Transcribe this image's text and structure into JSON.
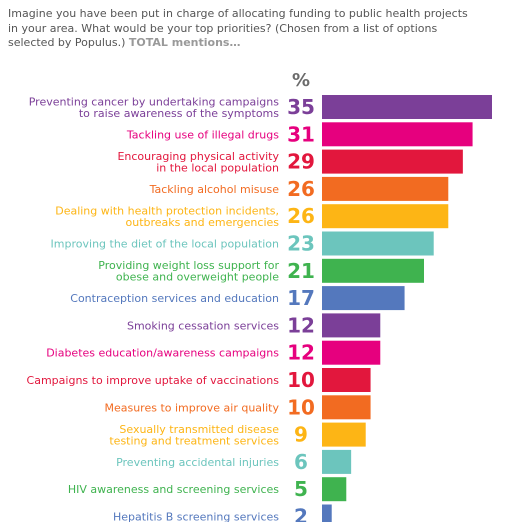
{
  "question": {
    "text": "Imagine you have been put in charge of allocating funding to public health projects in your area. What would be your top priorities? (Chosen from a list of options selected by Populus.)",
    "suffix": "TOTAL mentions…"
  },
  "value_unit_header": "%",
  "chart_data": {
    "type": "bar",
    "orientation": "horizontal",
    "title": "",
    "xlabel": "",
    "ylabel": "",
    "unit": "%",
    "xlim": [
      0,
      35
    ],
    "grid": false,
    "legend": "none",
    "categories": [
      [
        "Preventing cancer by undertaking campaigns",
        "to raise awareness of the symptoms"
      ],
      [
        "Tackling use of illegal drugs"
      ],
      [
        "Encouraging physical activity",
        "in the local population"
      ],
      [
        "Tackling alcohol misuse"
      ],
      [
        "Dealing with health protection incidents,",
        "outbreaks and emergencies"
      ],
      [
        "Improving the diet of the local population"
      ],
      [
        "Providing weight loss support for",
        "obese and overweight people"
      ],
      [
        "Contraception services and education"
      ],
      [
        "Smoking cessation services"
      ],
      [
        "Diabetes education/awareness campaigns"
      ],
      [
        "Campaigns to improve uptake of vaccinations"
      ],
      [
        "Measures to improve air quality"
      ],
      [
        "Sexually transmitted disease",
        "testing and treatment services"
      ],
      [
        "Preventing accidental injuries"
      ],
      [
        "HIV awareness and screening services"
      ],
      [
        "Hepatitis B screening services"
      ]
    ],
    "values": [
      35,
      31,
      29,
      26,
      26,
      23,
      21,
      17,
      12,
      12,
      10,
      10,
      9,
      6,
      5,
      2
    ],
    "colors": [
      "#7b3f98",
      "#e6007e",
      "#e2173d",
      "#f26b21",
      "#fdb515",
      "#6cc5bd",
      "#3fb34f",
      "#5478bd",
      "#7b3f98",
      "#e6007e",
      "#e2173d",
      "#f26b21",
      "#fdb515",
      "#6cc5bd",
      "#3fb34f",
      "#5478bd"
    ]
  }
}
